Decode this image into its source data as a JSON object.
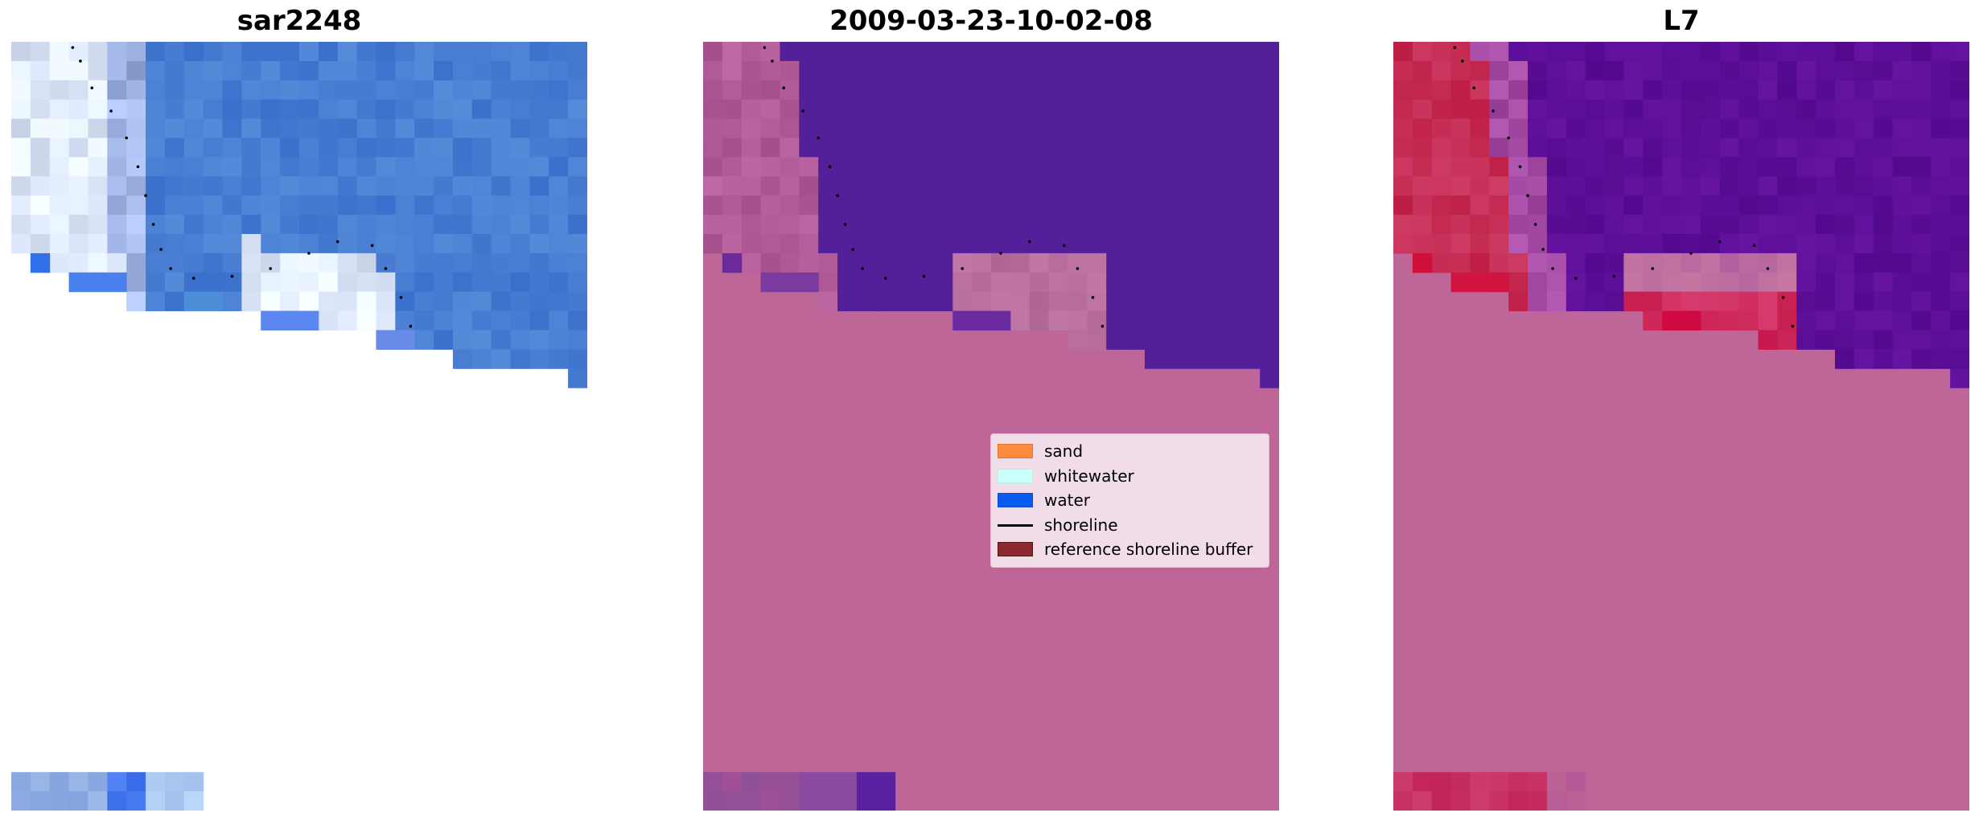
{
  "panels": [
    {
      "title": "sar2248"
    },
    {
      "title": "2009-03-23-10-02-08"
    },
    {
      "title": "L7"
    }
  ],
  "legend": {
    "items": [
      {
        "label": "sand",
        "kind": "patch",
        "color": "#ff8c3e"
      },
      {
        "label": "whitewater",
        "kind": "patch",
        "color": "#ccfffb"
      },
      {
        "label": "water",
        "kind": "patch",
        "color": "#0a5cf0"
      },
      {
        "label": "shoreline",
        "kind": "line",
        "color": "#000000"
      },
      {
        "label": "reference shoreline buffer",
        "kind": "patch",
        "color": "#8b2a2e"
      }
    ]
  },
  "colors": {
    "no_data_mask": "#bd6697",
    "water_class": "#54209a",
    "land_class": "#a5518b",
    "water_rgb": "#4b7dd2",
    "whitewater_rgb": "#dde8f7",
    "l7_water": "#5c0c9a",
    "l7_land": "#c2214d"
  }
}
